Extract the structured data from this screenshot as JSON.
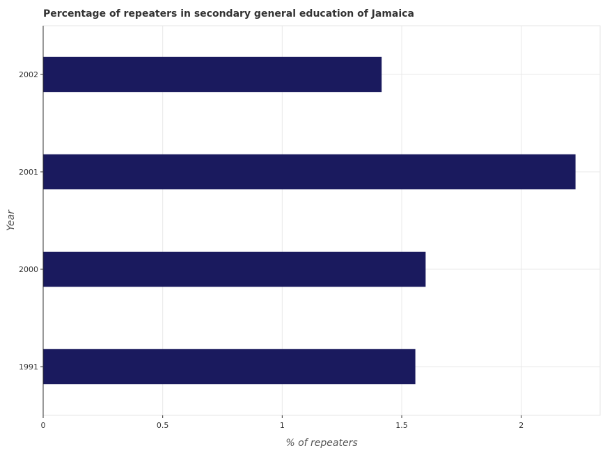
{
  "chart_data": {
    "type": "bar",
    "orientation": "horizontal",
    "title": "Percentage of repeaters in secondary general education of Jamaica",
    "xlabel": "% of repeaters",
    "ylabel": "Year",
    "categories": [
      "1991",
      "2000",
      "2001",
      "2002"
    ],
    "values": [
      1.557,
      1.6,
      2.227,
      1.416
    ],
    "xlim": [
      0,
      2.33
    ],
    "xticks": [
      0,
      0.5,
      1,
      1.5,
      2
    ],
    "xtick_labels": [
      "0",
      "0.5",
      "1",
      "1.5",
      "2"
    ],
    "bar_color": "#1a1a5e",
    "grid": true,
    "grid_color": "#e8e8e8",
    "legend": "none"
  }
}
